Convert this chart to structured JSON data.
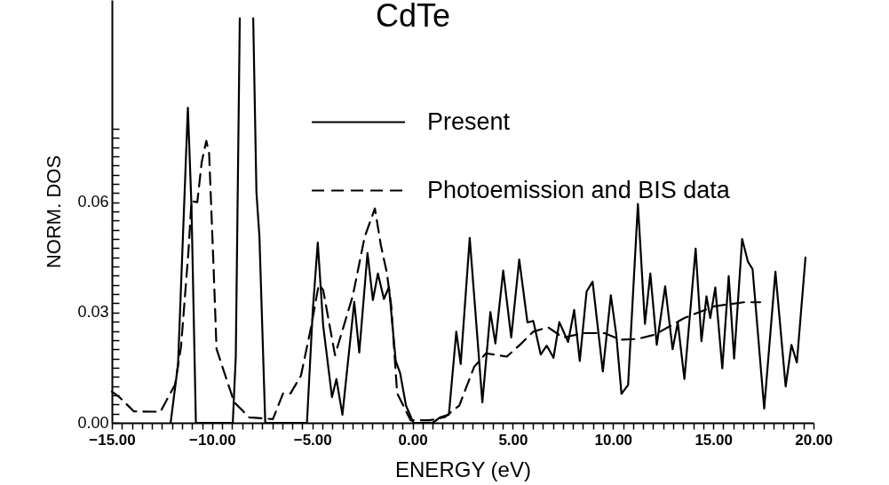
{
  "chart_data": {
    "type": "line",
    "title": "CdTe",
    "xlabel": "ENERGY (eV)",
    "ylabel": "NORM. DOS",
    "legend": "top right",
    "xlim": [
      -15,
      20
    ],
    "ylim": [
      0,
      0.115
    ],
    "xticks": [
      {
        "value": -15,
        "label": "−15.00"
      },
      {
        "value": -14.5,
        "label": null
      },
      {
        "value": -14,
        "label": null
      },
      {
        "value": -13.5,
        "label": null
      },
      {
        "value": -13,
        "label": null
      },
      {
        "value": -12.5,
        "label": null
      },
      {
        "value": -12,
        "label": null
      },
      {
        "value": -11.5,
        "label": null
      },
      {
        "value": -11,
        "label": null
      },
      {
        "value": -10.5,
        "label": null
      },
      {
        "value": -10,
        "label": "−10.00"
      },
      {
        "value": -9.5,
        "label": null
      },
      {
        "value": -9,
        "label": null
      },
      {
        "value": -8.5,
        "label": null
      },
      {
        "value": -8,
        "label": null
      },
      {
        "value": -7.5,
        "label": null
      },
      {
        "value": -7,
        "label": null
      },
      {
        "value": -6.5,
        "label": null
      },
      {
        "value": -6,
        "label": null
      },
      {
        "value": -5.5,
        "label": null
      },
      {
        "value": -5,
        "label": "−5.00"
      },
      {
        "value": -4.5,
        "label": null
      },
      {
        "value": -4,
        "label": null
      },
      {
        "value": -3.5,
        "label": null
      },
      {
        "value": -3,
        "label": null
      },
      {
        "value": -2.5,
        "label": null
      },
      {
        "value": -2,
        "label": null
      },
      {
        "value": -1.5,
        "label": null
      },
      {
        "value": -1,
        "label": null
      },
      {
        "value": -0.5,
        "label": null
      },
      {
        "value": 0,
        "label": "0.00"
      },
      {
        "value": 0.5,
        "label": null
      },
      {
        "value": 1,
        "label": null
      },
      {
        "value": 1.5,
        "label": null
      },
      {
        "value": 2,
        "label": null
      },
      {
        "value": 2.5,
        "label": null
      },
      {
        "value": 3,
        "label": null
      },
      {
        "value": 3.5,
        "label": null
      },
      {
        "value": 4,
        "label": null
      },
      {
        "value": 4.5,
        "label": null
      },
      {
        "value": 5,
        "label": "5.00"
      },
      {
        "value": 5.5,
        "label": null
      },
      {
        "value": 6,
        "label": null
      },
      {
        "value": 6.5,
        "label": null
      },
      {
        "value": 7,
        "label": null
      },
      {
        "value": 7.5,
        "label": null
      },
      {
        "value": 8,
        "label": null
      },
      {
        "value": 8.5,
        "label": null
      },
      {
        "value": 9,
        "label": null
      },
      {
        "value": 9.5,
        "label": null
      },
      {
        "value": 10,
        "label": "10.00"
      },
      {
        "value": 10.5,
        "label": null
      },
      {
        "value": 11,
        "label": null
      },
      {
        "value": 11.5,
        "label": null
      },
      {
        "value": 12,
        "label": null
      },
      {
        "value": 12.5,
        "label": null
      },
      {
        "value": 13,
        "label": null
      },
      {
        "value": 13.5,
        "label": null
      },
      {
        "value": 14,
        "label": null
      },
      {
        "value": 14.5,
        "label": null
      },
      {
        "value": 15,
        "label": "15.00"
      },
      {
        "value": 15.5,
        "label": null
      },
      {
        "value": 16,
        "label": null
      },
      {
        "value": 16.5,
        "label": null
      },
      {
        "value": 17,
        "label": null
      },
      {
        "value": 17.5,
        "label": null
      },
      {
        "value": 18,
        "label": null
      },
      {
        "value": 18.5,
        "label": null
      },
      {
        "value": 19,
        "label": null
      },
      {
        "value": 19.5,
        "label": null
      },
      {
        "value": 20,
        "label": "20.00"
      }
    ],
    "yticks": [
      {
        "value": 0,
        "label": "0.00"
      },
      {
        "value": 0.0025,
        "label": null
      },
      {
        "value": 0.005,
        "label": null
      },
      {
        "value": 0.0075,
        "label": null
      },
      {
        "value": 0.01,
        "label": null
      },
      {
        "value": 0.0125,
        "label": null
      },
      {
        "value": 0.015,
        "label": null
      },
      {
        "value": 0.0175,
        "label": null
      },
      {
        "value": 0.02,
        "label": null
      },
      {
        "value": 0.0225,
        "label": null
      },
      {
        "value": 0.025,
        "label": null
      },
      {
        "value": 0.0275,
        "label": null
      },
      {
        "value": 0.03,
        "label": "0.03"
      },
      {
        "value": 0.0325,
        "label": null
      },
      {
        "value": 0.035,
        "label": null
      },
      {
        "value": 0.0375,
        "label": null
      },
      {
        "value": 0.04,
        "label": null
      },
      {
        "value": 0.0425,
        "label": null
      },
      {
        "value": 0.045,
        "label": null
      },
      {
        "value": 0.0475,
        "label": null
      },
      {
        "value": 0.05,
        "label": null
      },
      {
        "value": 0.0525,
        "label": null
      },
      {
        "value": 0.055,
        "label": null
      },
      {
        "value": 0.0575,
        "label": null
      },
      {
        "value": 0.06,
        "label": "0.06"
      },
      {
        "value": 0.0625,
        "label": null
      },
      {
        "value": 0.065,
        "label": null
      },
      {
        "value": 0.0675,
        "label": null
      },
      {
        "value": 0.07,
        "label": null
      },
      {
        "value": 0.0725,
        "label": null
      },
      {
        "value": 0.075,
        "label": null
      },
      {
        "value": 0.0775,
        "label": null
      },
      {
        "value": 0.08,
        "label": null
      }
    ],
    "series": [
      {
        "name": "Present",
        "color": "#000000",
        "line_style": "solid",
        "x": [
          -12.07,
          -11.7,
          -11.21,
          -11.03,
          -10.81,
          -8.97,
          -8.82,
          -8.62,
          -8.3,
          -7.95,
          -7.79,
          -7.64,
          -7.35,
          -5.27,
          -4.98,
          -4.73,
          -4.46,
          -4.02,
          -3.8,
          -3.5,
          -2.91,
          -2.66,
          -2.25,
          -1.98,
          -1.73,
          -1.43,
          -1.18,
          -0.84,
          -0.62,
          -0.33,
          0.04,
          1.0,
          1.37,
          1.81,
          2.18,
          2.4,
          2.85,
          3.48,
          3.88,
          4.13,
          4.52,
          4.92,
          5.32,
          5.73,
          6.02,
          6.39,
          6.69,
          7.03,
          7.32,
          7.76,
          8.06,
          8.34,
          8.68,
          8.98,
          9.49,
          9.89,
          10.16,
          10.42,
          10.75,
          11.24,
          11.59,
          11.86,
          12.18,
          12.6,
          12.97,
          13.23,
          13.56,
          14.12,
          14.41,
          14.66,
          14.85,
          15.1,
          15.45,
          15.77,
          16.04,
          16.44,
          16.73,
          16.96,
          17.54,
          18.1,
          18.61,
          18.9,
          19.17,
          19.6
        ],
        "values": [
          0,
          0.016,
          0.0857,
          0.0588,
          0,
          0,
          0.018,
          0.11,
          null,
          0.11,
          0.0627,
          0.0506,
          0,
          0,
          0.0305,
          0.049,
          0.0264,
          0.007,
          0.0119,
          0.0022,
          0.0329,
          0.0191,
          0.0462,
          0.0334,
          0.0406,
          0.0337,
          0.0369,
          0.0168,
          0.0135,
          0.0047,
          0,
          0,
          0.0015,
          0.0022,
          0.0248,
          0.016,
          0.0503,
          0.0056,
          0.0301,
          0.0216,
          0.0414,
          0.0232,
          0.0444,
          0.0273,
          0.0277,
          0.0186,
          0.021,
          0.0177,
          0.0274,
          0.022,
          0.0307,
          0.0168,
          0.0357,
          0.0384,
          0.014,
          0.0347,
          0.024,
          0.0079,
          0.0103,
          0.0595,
          0.0269,
          0.0406,
          0.0212,
          0.0371,
          0.02,
          0.0273,
          0.0119,
          0.0474,
          0.0222,
          0.0344,
          0.0285,
          0.0368,
          0.0148,
          0.0399,
          0.0175,
          0.05,
          0.0438,
          0.0418,
          0.0039,
          0.0411,
          0.0099,
          0.0212,
          0.0164,
          0.045
        ]
      },
      {
        "name": "Photoemission and BIS data",
        "color": "#000000",
        "line_style": "dashed",
        "x": [
          -15,
          -14.65,
          -13.9,
          -12.58,
          -11.85,
          -11.55,
          -11.18,
          -11.03,
          -10.74,
          -10.52,
          -10.29,
          -10.15,
          -9.93,
          -9.78,
          -9.34,
          -8.9,
          -8.15,
          -6.97,
          -6.46,
          -6.09,
          -5.57,
          -5.05,
          -4.68,
          -4.46,
          -3.87,
          -2.98,
          -2.39,
          -1.88,
          -1.58,
          -1.29,
          -1.07,
          -0.77,
          -0.1,
          0.85,
          1.59,
          2.33,
          3.07,
          3.66,
          4.7,
          5.43,
          6.02,
          6.76,
          7.5,
          8.54,
          9.57,
          10.38,
          11.2,
          12.09,
          13.56,
          15.04,
          16.52,
          17.34
        ],
        "values": [
          0.0085,
          0.0071,
          0.0031,
          0.003,
          0.0104,
          0.0208,
          0.0467,
          0.0603,
          0.06,
          0.0709,
          0.0767,
          0.0733,
          0.0426,
          0.0201,
          0.0128,
          0.0056,
          0.0015,
          0.001,
          0.008,
          0.008,
          0.0128,
          0.0264,
          0.0377,
          0.0361,
          0.0184,
          0.0346,
          0.0506,
          0.0583,
          0.0482,
          0.041,
          0.0321,
          0.008,
          0.0007,
          0.0007,
          0.0015,
          0.0047,
          0.0152,
          0.0189,
          0.018,
          0.0216,
          0.0248,
          0.026,
          0.0232,
          0.0244,
          0.0244,
          0.0226,
          0.0228,
          0.024,
          0.0285,
          0.0317,
          0.0328,
          0.0328
        ]
      }
    ]
  }
}
